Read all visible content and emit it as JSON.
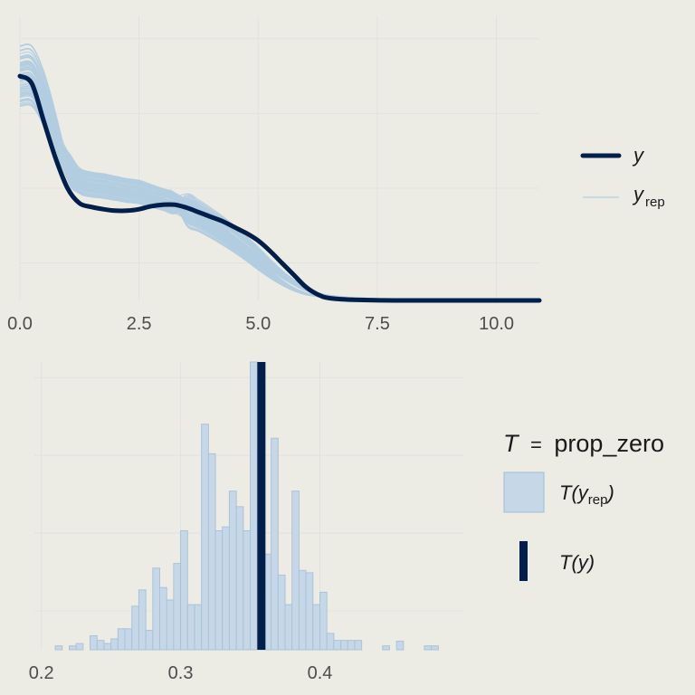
{
  "chart_data": [
    {
      "type": "area",
      "subtype": "density_overlay",
      "xlim": [
        0,
        10.9
      ],
      "ylim": [
        0,
        0.38
      ],
      "x_ticks": [
        "0.0",
        "2.5",
        "5.0",
        "7.5",
        "10.0"
      ],
      "x_tick_values": [
        0,
        2.5,
        5,
        7.5,
        10
      ],
      "grid": true,
      "legend_position": "right",
      "colors": {
        "y": "#011f4b",
        "y_rep": "#b3cde0",
        "grid": "#dfe3e0",
        "background": "#ecece4"
      },
      "series": [
        {
          "name": "y",
          "style": "thick-line",
          "x": [
            0.0,
            0.25,
            0.5,
            0.75,
            1.0,
            1.25,
            1.5,
            1.75,
            2.0,
            2.25,
            2.5,
            2.75,
            3.0,
            3.25,
            3.5,
            3.75,
            4.0,
            4.25,
            4.5,
            4.75,
            5.0,
            5.25,
            5.5,
            5.75,
            6.0,
            6.25,
            6.5,
            7.0,
            8.0,
            9.0,
            10.0,
            10.9
          ],
          "values": [
            0.3,
            0.29,
            0.24,
            0.19,
            0.15,
            0.13,
            0.125,
            0.122,
            0.12,
            0.12,
            0.122,
            0.126,
            0.128,
            0.128,
            0.124,
            0.118,
            0.112,
            0.106,
            0.098,
            0.09,
            0.08,
            0.066,
            0.05,
            0.034,
            0.018,
            0.008,
            0.003,
            0.001,
            0.0,
            0.0,
            0.0,
            0.0
          ]
        },
        {
          "name": "y_rep",
          "style": "thin-lines",
          "x": [
            0.0,
            0.25,
            0.5,
            0.75,
            1.0,
            1.25,
            1.5,
            1.75,
            2.0,
            2.25,
            2.5,
            2.75,
            3.0,
            3.25,
            3.5,
            3.75,
            4.0,
            4.25,
            4.5,
            4.75,
            5.0,
            5.25,
            5.5,
            5.75,
            6.0,
            6.25,
            6.5,
            7.0,
            8.0,
            9.0,
            10.0,
            10.9
          ],
          "mean_values": [
            0.3,
            0.3,
            0.27,
            0.22,
            0.18,
            0.16,
            0.155,
            0.153,
            0.15,
            0.147,
            0.145,
            0.14,
            0.135,
            0.13,
            0.124,
            0.117,
            0.108,
            0.098,
            0.087,
            0.075,
            0.062,
            0.048,
            0.035,
            0.024,
            0.015,
            0.009,
            0.006,
            0.003,
            0.001,
            0.0,
            0.0,
            0.0
          ],
          "count": 100
        }
      ],
      "legend": [
        {
          "key": "y",
          "label_main": "y",
          "label_sub": ""
        },
        {
          "key": "y_rep",
          "label_main": "y",
          "label_sub": "rep"
        }
      ]
    },
    {
      "type": "bar",
      "subtype": "histogram",
      "xlim": [
        0.195,
        0.49
      ],
      "ylim": [
        0,
        37
      ],
      "x_ticks": [
        "0.2",
        "0.3",
        "0.4"
      ],
      "x_tick_values": [
        0.2,
        0.3,
        0.4
      ],
      "bin_width": 0.005,
      "grid": true,
      "legend_position": "right",
      "colors": {
        "bars_fill": "#c6d8e7",
        "bars_stroke": "#a9c3d8",
        "t_y": "#011f4b"
      },
      "bins_start": [
        0.2,
        0.205,
        0.21,
        0.215,
        0.22,
        0.225,
        0.23,
        0.235,
        0.24,
        0.245,
        0.25,
        0.255,
        0.26,
        0.265,
        0.27,
        0.275,
        0.28,
        0.285,
        0.29,
        0.295,
        0.3,
        0.305,
        0.31,
        0.315,
        0.32,
        0.325,
        0.33,
        0.335,
        0.34,
        0.345,
        0.35,
        0.355,
        0.36,
        0.365,
        0.37,
        0.375,
        0.38,
        0.385,
        0.39,
        0.395,
        0.4,
        0.405,
        0.41,
        0.415,
        0.42,
        0.425,
        0.43,
        0.435,
        0.44,
        0.445,
        0.45,
        0.455,
        0.46,
        0.465,
        0.47,
        0.475,
        0.48
      ],
      "counts": [
        0,
        0,
        0.5,
        0,
        0.5,
        0.8,
        0,
        1.8,
        1.2,
        0.8,
        1.4,
        2.7,
        2.7,
        5.6,
        7.7,
        2.5,
        10.5,
        8.0,
        6.4,
        11.1,
        15.3,
        5.8,
        5.8,
        29.0,
        25.2,
        15.3,
        15.8,
        20.4,
        18.4,
        15.3,
        37.0,
        25.4,
        12.3,
        27.2,
        9.6,
        5.8,
        20.4,
        10.2,
        9.9,
        5.8,
        7.4,
        2.1,
        1.2,
        1.2,
        1.2,
        1.2,
        0,
        0,
        0,
        0.5,
        0,
        1.1,
        0,
        0,
        0,
        0.5,
        0.5
      ],
      "t_y_value": 0.358,
      "legend": {
        "title_T": "T",
        "title_eq": "=",
        "title_stat": "prop_zero",
        "items": [
          {
            "key": "t_yrep",
            "pre": "T(",
            "main": "y",
            "sub": "rep",
            "post": ")"
          },
          {
            "key": "t_y",
            "pre": "T(",
            "main": "y",
            "sub": "",
            "post": ")"
          }
        ]
      }
    }
  ]
}
